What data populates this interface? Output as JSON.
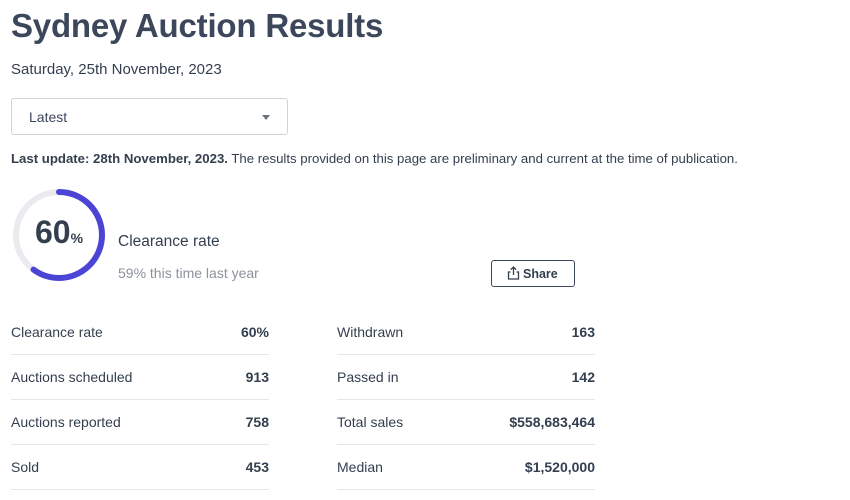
{
  "page": {
    "title": "Sydney Auction Results",
    "date": "Saturday, 25th November, 2023"
  },
  "filter": {
    "selected": "Latest",
    "icon": "chevron-down-icon"
  },
  "update": {
    "label": "Last update: 28th November, 2023.",
    "note": "The results provided on this page are preliminary and current at the time of publication."
  },
  "clearance": {
    "value": "60",
    "unit": "%",
    "fraction": 0.6,
    "label": "Clearance rate",
    "comparison": "59% this time last year",
    "ring_color": "#4b44d4",
    "track_color": "#e9ebee"
  },
  "share": {
    "label": "Share",
    "icon": "share-icon"
  },
  "stats": {
    "left": [
      {
        "label": "Clearance rate",
        "value": "60%"
      },
      {
        "label": "Auctions scheduled",
        "value": "913"
      },
      {
        "label": "Auctions reported",
        "value": "758"
      },
      {
        "label": "Sold",
        "value": "453"
      }
    ],
    "right": [
      {
        "label": "Withdrawn",
        "value": "163"
      },
      {
        "label": "Passed in",
        "value": "142"
      },
      {
        "label": "Total sales",
        "value": "$558,683,464"
      },
      {
        "label": "Median",
        "value": "$1,520,000"
      }
    ]
  }
}
